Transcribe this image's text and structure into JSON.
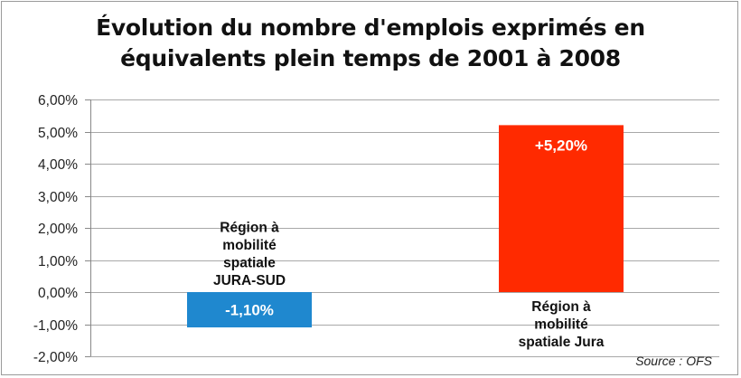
{
  "chart_data": {
    "type": "bar",
    "title": [
      "Évolution du nombre d'emplois exprimés en",
      "équivalents plein temps de 2001 à 2008"
    ],
    "categories": [
      [
        "Région à",
        "mobilité",
        "spatiale",
        "JURA-SUD"
      ],
      [
        "Région à",
        "mobilité",
        "spatiale Jura"
      ]
    ],
    "values": [
      -1.1,
      5.2
    ],
    "value_labels": [
      "-1,10%",
      "+5,20%"
    ],
    "colors": [
      "#1f88cf",
      "#ff2a00"
    ],
    "ylim": [
      -2,
      6
    ],
    "yticks": [
      -2,
      -1,
      0,
      1,
      2,
      3,
      4,
      5,
      6
    ],
    "ytick_labels": [
      "-2,00%",
      "-1,00%",
      "0,00%",
      "1,00%",
      "2,00%",
      "3,00%",
      "4,00%",
      "5,00%",
      "6,00%"
    ],
    "grid": true,
    "source": "Source : OFS"
  }
}
